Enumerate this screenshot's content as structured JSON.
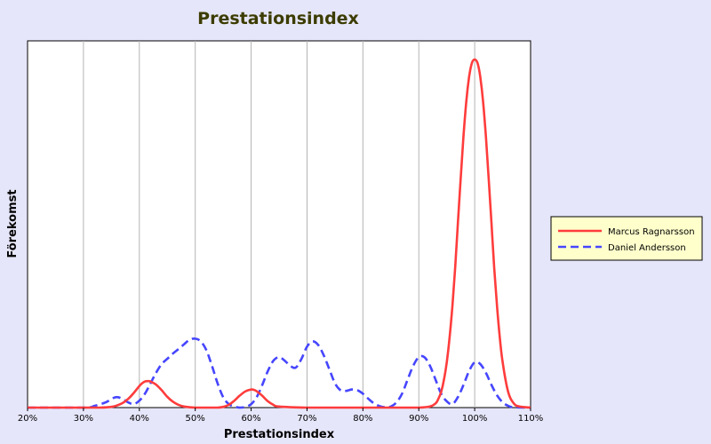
{
  "chart_data": {
    "type": "line",
    "title": "Prestationsindex",
    "xlabel": "Prestationsindex",
    "ylabel": "Förekomst",
    "x_ticks": [
      "20%",
      "30%",
      "40%",
      "50%",
      "60%",
      "70%",
      "80%",
      "90%",
      "100%",
      "110%"
    ],
    "xlim": [
      20,
      110
    ],
    "ylim": [
      0,
      1
    ],
    "grid": "vertical",
    "legend_position": "right",
    "series": [
      {
        "name": "Marcus Ragnarsson",
        "color": "#ff3c3c",
        "dash": "solid",
        "x": [
          20,
          31,
          33,
          35,
          36,
          37,
          38,
          39,
          40,
          40.5,
          41,
          41.5,
          42,
          43,
          44,
          45,
          46,
          47,
          48,
          50,
          52,
          54,
          55,
          56,
          57,
          58,
          59,
          60,
          60.5,
          61,
          62,
          63,
          64,
          65,
          70,
          75,
          80,
          85,
          90,
          92,
          93,
          93.5,
          94,
          94.5,
          95,
          95.5,
          96,
          96.5,
          97,
          97.5,
          98,
          98.5,
          99,
          99.5,
          100,
          100.5,
          101,
          101.5,
          102,
          102.5,
          103,
          103.5,
          104,
          104.5,
          105,
          106,
          107,
          108,
          110
        ],
        "y": [
          0,
          0,
          0,
          0.002,
          0.006,
          0.013,
          0.025,
          0.042,
          0.062,
          0.07,
          0.075,
          0.076,
          0.075,
          0.066,
          0.05,
          0.031,
          0.017,
          0.008,
          0.003,
          0,
          0,
          0,
          0.002,
          0.008,
          0.02,
          0.035,
          0.047,
          0.052,
          0.051,
          0.047,
          0.034,
          0.018,
          0.008,
          0.003,
          0,
          0,
          0,
          0,
          0,
          0.003,
          0.012,
          0.025,
          0.045,
          0.08,
          0.13,
          0.2,
          0.29,
          0.4,
          0.53,
          0.66,
          0.78,
          0.88,
          0.95,
          0.99,
          1.0,
          0.99,
          0.95,
          0.88,
          0.78,
          0.66,
          0.53,
          0.4,
          0.29,
          0.2,
          0.13,
          0.045,
          0.012,
          0.003,
          0
        ]
      },
      {
        "name": "Daniel Andersson",
        "color": "#4646ff",
        "dash": "dashed",
        "x": [
          20,
          30,
          32,
          34,
          35,
          36,
          37,
          38,
          39,
          40,
          41,
          42,
          43,
          44,
          45,
          46,
          47,
          48,
          49,
          50,
          51,
          52,
          53,
          54,
          55,
          56,
          57,
          58,
          59,
          60,
          61,
          62,
          63,
          64,
          65,
          66,
          67,
          68,
          69,
          70,
          71,
          72,
          73,
          74,
          75,
          76,
          77,
          78,
          79,
          80,
          81,
          82,
          83,
          84,
          85,
          86,
          87,
          88,
          89,
          90,
          91,
          92,
          93,
          94,
          95,
          96,
          97,
          98,
          99,
          100,
          101,
          102,
          103,
          104,
          105,
          106,
          107,
          110
        ],
        "y": [
          0,
          0,
          0.005,
          0.015,
          0.025,
          0.03,
          0.025,
          0.015,
          0.01,
          0.02,
          0.04,
          0.07,
          0.1,
          0.125,
          0.14,
          0.155,
          0.168,
          0.182,
          0.195,
          0.198,
          0.19,
          0.165,
          0.12,
          0.07,
          0.03,
          0.01,
          0.003,
          0.0,
          0.002,
          0.01,
          0.03,
          0.065,
          0.105,
          0.135,
          0.145,
          0.135,
          0.12,
          0.115,
          0.14,
          0.175,
          0.19,
          0.18,
          0.15,
          0.11,
          0.07,
          0.05,
          0.048,
          0.052,
          0.05,
          0.04,
          0.025,
          0.012,
          0.004,
          0.001,
          0.003,
          0.015,
          0.04,
          0.08,
          0.12,
          0.145,
          0.145,
          0.12,
          0.08,
          0.04,
          0.018,
          0.01,
          0.03,
          0.065,
          0.105,
          0.13,
          0.125,
          0.1,
          0.065,
          0.035,
          0.015,
          0.005,
          0.001,
          0
        ]
      }
    ]
  }
}
